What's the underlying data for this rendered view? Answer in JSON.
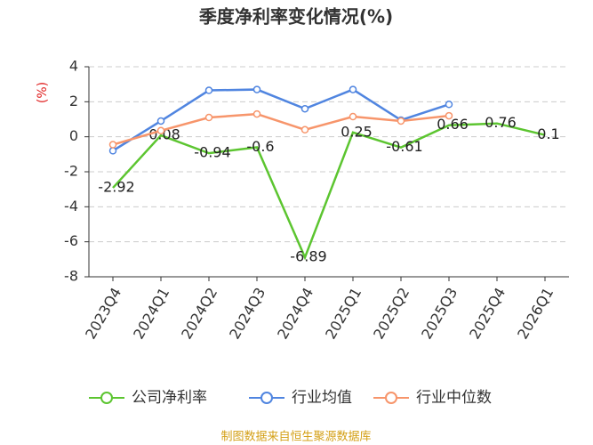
{
  "chart_data": {
    "type": "line",
    "title": "季度净利率变化情况(%)",
    "y_label": "(%)",
    "categories": [
      "2023Q4",
      "2024Q1",
      "2024Q2",
      "2024Q3",
      "2024Q4",
      "2025Q1",
      "2025Q2",
      "2025Q3",
      "2025Q4",
      "2026Q1"
    ],
    "series": [
      {
        "name": "公司净利率",
        "color": "#5cc530",
        "markers": false,
        "data_labels": true,
        "values": [
          -2.92,
          0.08,
          -0.94,
          -0.6,
          -6.89,
          0.25,
          -0.61,
          0.66,
          0.76,
          0.1
        ]
      },
      {
        "name": "行业均值",
        "color": "#5085e0",
        "markers": true,
        "data_labels": false,
        "values": [
          -0.8,
          0.9,
          2.65,
          2.7,
          1.6,
          2.7,
          0.95,
          1.85,
          null,
          null
        ]
      },
      {
        "name": "行业中位数",
        "color": "#f7956b",
        "markers": true,
        "data_labels": false,
        "values": [
          -0.45,
          0.35,
          1.1,
          1.3,
          0.4,
          1.15,
          0.9,
          1.2,
          null,
          null
        ]
      }
    ],
    "ylim": [
      -8,
      4
    ],
    "yticks": [
      -8,
      -6,
      -4,
      -2,
      0,
      2,
      4
    ],
    "grid": true,
    "source": "制图数据来自恒生聚源数据库"
  }
}
